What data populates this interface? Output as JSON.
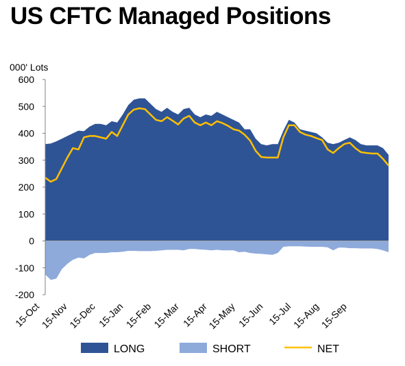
{
  "title": "US CFTC Managed Positions",
  "chart_data": {
    "type": "area",
    "ylabel": "000' Lots",
    "ylim": [
      -200,
      600
    ],
    "yticks": [
      "600",
      "500",
      "400",
      "300",
      "200",
      "100",
      "0",
      "-100",
      "-200"
    ],
    "xticks": [
      "15-Oct",
      "15-Nov",
      "15-Dec",
      "15-Jan",
      "15-Feb",
      "15-Mar",
      "15-Apr",
      "15-May",
      "15-Jun",
      "15-Jul",
      "15-Aug",
      "15-Sep"
    ],
    "series": [
      {
        "name": "LONG",
        "color": "#2f5496",
        "values": [
          360,
          362,
          370,
          380,
          390,
          400,
          410,
          408,
          425,
          435,
          435,
          430,
          445,
          440,
          470,
          505,
          525,
          530,
          530,
          510,
          490,
          480,
          495,
          480,
          470,
          490,
          495,
          470,
          460,
          470,
          465,
          480,
          470,
          460,
          450,
          440,
          415,
          415,
          380,
          360,
          355,
          360,
          360,
          410,
          450,
          440,
          415,
          410,
          405,
          400,
          385,
          365,
          360,
          365,
          375,
          385,
          375,
          360,
          355,
          355,
          355,
          345,
          320
        ]
      },
      {
        "name": "SHORT",
        "color": "#8eaadb",
        "values": [
          -125,
          -145,
          -140,
          -105,
          -85,
          -70,
          -62,
          -65,
          -52,
          -45,
          -45,
          -45,
          -42,
          -42,
          -40,
          -37,
          -37,
          -38,
          -38,
          -38,
          -37,
          -35,
          -33,
          -33,
          -33,
          -35,
          -30,
          -30,
          -32,
          -33,
          -35,
          -33,
          -35,
          -35,
          -35,
          -42,
          -40,
          -45,
          -47,
          -48,
          -50,
          -52,
          -45,
          -22,
          -20,
          -20,
          -20,
          -21,
          -22,
          -22,
          -22,
          -24,
          -35,
          -25,
          -25,
          -27,
          -27,
          -28,
          -28,
          -28,
          -30,
          -35,
          -42
        ]
      },
      {
        "name": "NET",
        "color": "#ffc000",
        "values": [
          235,
          220,
          230,
          270,
          310,
          345,
          340,
          385,
          390,
          390,
          385,
          380,
          405,
          390,
          430,
          470,
          488,
          493,
          490,
          470,
          450,
          445,
          460,
          447,
          433,
          455,
          465,
          440,
          430,
          440,
          430,
          445,
          438,
          428,
          415,
          410,
          395,
          373,
          335,
          312,
          310,
          310,
          310,
          385,
          430,
          430,
          405,
          395,
          390,
          382,
          375,
          340,
          327,
          345,
          360,
          365,
          345,
          330,
          327,
          325,
          325,
          305,
          280
        ]
      }
    ],
    "legend_position": "bottom"
  }
}
